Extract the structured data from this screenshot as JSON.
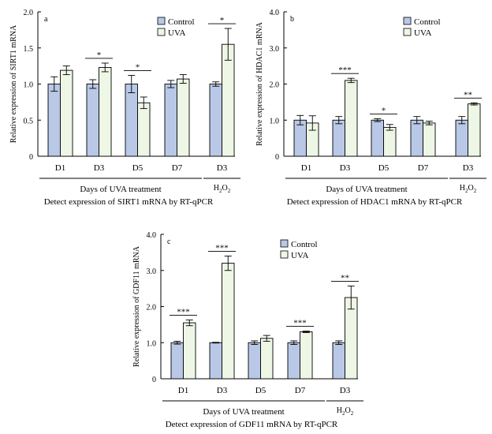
{
  "colors": {
    "control": "#b8c8e6",
    "uva": "#eef7e6",
    "stroke": "#000000"
  },
  "chart_data": [
    {
      "type": "bar",
      "panel_letter": "a",
      "ylabel": "Relative expression of SIRT1 mRNA",
      "yticks": [
        "0",
        "0.5",
        "1.0",
        "1.5",
        "2.0"
      ],
      "ylim": [
        0,
        2.0
      ],
      "categories": [
        "D1",
        "D3",
        "D5",
        "D7",
        "D3"
      ],
      "series": [
        {
          "name": "Control",
          "values": [
            1.0,
            1.0,
            1.0,
            1.0,
            1.0
          ],
          "errors": [
            0.1,
            0.06,
            0.12,
            0.05,
            0.03
          ]
        },
        {
          "name": "UVA",
          "values": [
            1.19,
            1.23,
            0.74,
            1.07,
            1.55
          ],
          "errors": [
            0.06,
            0.06,
            0.08,
            0.06,
            0.22
          ]
        }
      ],
      "significance": [
        "",
        "*",
        "*",
        "",
        "*"
      ],
      "group_label": "Days of UVA treatment",
      "h2o2_label": "H",
      "h2o2_sub1": "2",
      "h2o2_mid": "O",
      "h2o2_sub2": "2",
      "caption": "Detect expression of SIRT1 mRNA by RT-qPCR",
      "legend_position": "top-right",
      "grid": false
    },
    {
      "type": "bar",
      "panel_letter": "b",
      "ylabel": "Relative expression of HDAC1 mRNA",
      "yticks": [
        "0",
        "1.0",
        "2.0",
        "3.0",
        "4.0"
      ],
      "ylim": [
        0,
        4.0
      ],
      "categories": [
        "D1",
        "D3",
        "D5",
        "D7",
        "D3"
      ],
      "series": [
        {
          "name": "Control",
          "values": [
            1.0,
            1.0,
            1.0,
            1.0,
            1.0
          ],
          "errors": [
            0.13,
            0.1,
            0.04,
            0.1,
            0.1
          ]
        },
        {
          "name": "UVA",
          "values": [
            0.92,
            2.1,
            0.8,
            0.92,
            1.45
          ],
          "errors": [
            0.2,
            0.06,
            0.08,
            0.05,
            0.03
          ]
        }
      ],
      "significance": [
        "",
        "***",
        "*",
        "",
        "**"
      ],
      "group_label": "Days of UVA treatment",
      "h2o2_label": "H",
      "h2o2_sub1": "2",
      "h2o2_mid": "O",
      "h2o2_sub2": "2",
      "caption": "Detect expression of HDAC1 mRNA by RT-qPCR",
      "legend_position": "top-right",
      "grid": false
    },
    {
      "type": "bar",
      "panel_letter": "c",
      "ylabel": "Relative expression of GDF11 mRNA",
      "yticks": [
        "0",
        "1.0",
        "2.0",
        "3.0",
        "4.0"
      ],
      "ylim": [
        0,
        4.0
      ],
      "categories": [
        "D1",
        "D3",
        "D5",
        "D7",
        "D3"
      ],
      "series": [
        {
          "name": "Control",
          "values": [
            1.0,
            1.0,
            1.0,
            1.0,
            1.0
          ],
          "errors": [
            0.04,
            0.01,
            0.05,
            0.05,
            0.05
          ]
        },
        {
          "name": "UVA",
          "values": [
            1.55,
            3.2,
            1.12,
            1.3,
            2.25
          ],
          "errors": [
            0.08,
            0.2,
            0.08,
            0.02,
            0.32
          ]
        }
      ],
      "significance": [
        "***",
        "***",
        "",
        "***",
        "**"
      ],
      "group_label": "Days of UVA treatment",
      "h2o2_label": "H",
      "h2o2_sub1": "2",
      "h2o2_mid": "O",
      "h2o2_sub2": "2",
      "caption": "Detect expression of GDF11 mRNA by RT-qPCR",
      "legend_position": "top-right",
      "grid": false
    }
  ]
}
